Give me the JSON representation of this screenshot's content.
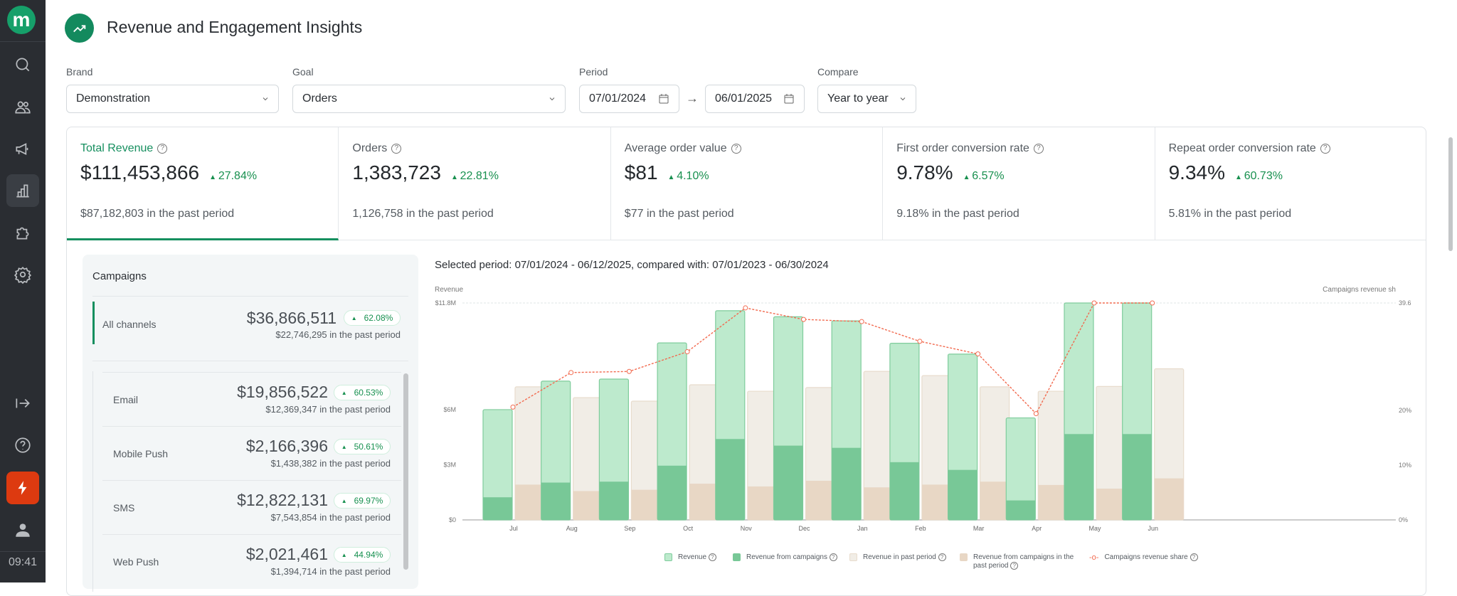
{
  "sidebar": {
    "logo": "m",
    "time": "09:41",
    "items": [
      "search-icon",
      "users-icon",
      "megaphone-icon",
      "bar-chart-icon",
      "puzzle-icon",
      "settings-icon"
    ],
    "bottom": [
      "expand-icon",
      "help-icon",
      "bolt-icon",
      "user-icon"
    ],
    "accent": "#dd3a10"
  },
  "header": {
    "title": "Revenue and Engagement Insights"
  },
  "filters": {
    "brand_label": "Brand",
    "brand": "Demonstration",
    "goal_label": "Goal",
    "goal": "Orders",
    "period_label": "Period",
    "start": "07/01/2024",
    "end": "06/01/2025",
    "compare_label": "Compare",
    "compare": "Year to year"
  },
  "kpis": [
    {
      "title": "Total Revenue",
      "value": "$111,453,866",
      "delta": "27.84%",
      "past": "$87,182,803 in the past period"
    },
    {
      "title": "Orders",
      "value": "1,383,723",
      "delta": "22.81%",
      "past": "1,126,758 in the past period"
    },
    {
      "title": "Average order value",
      "value": "$81",
      "delta": "4.10%",
      "past": "$77 in the past period"
    },
    {
      "title": "First order conversion rate",
      "value": "9.78%",
      "delta": "6.57%",
      "past": "9.18% in the past period"
    },
    {
      "title": "Repeat order conversion rate",
      "value": "9.34%",
      "delta": "60.73%",
      "past": "5.81% in the past period"
    }
  ],
  "campaigns": {
    "title": "Campaigns",
    "all": {
      "name": "All channels",
      "value": "$36,866,511",
      "delta": "62.08%",
      "past": "$22,746,295 in the past period"
    },
    "channels": [
      {
        "name": "Email",
        "value": "$19,856,522",
        "delta": "60.53%",
        "past": "$12,369,347 in the past period"
      },
      {
        "name": "Mobile Push",
        "value": "$2,166,396",
        "delta": "50.61%",
        "past": "$1,438,382 in the past period"
      },
      {
        "name": "SMS",
        "value": "$12,822,131",
        "delta": "69.97%",
        "past": "$7,543,854 in the past period"
      },
      {
        "name": "Web Push",
        "value": "$2,021,461",
        "delta": "44.94%",
        "past": "$1,394,714 in the past period"
      }
    ]
  },
  "chart_title": "Selected period: 07/01/2024 - 06/12/2025, compared with: 07/01/2023 - 06/30/2024",
  "chart_data": {
    "type": "bar",
    "ylabel": "Revenue",
    "y2label": "Campaigns revenue sh",
    "ylim": [
      0,
      11.8
    ],
    "y2lim": [
      0,
      39.6
    ],
    "yticks": [
      "$0",
      "$3M",
      "$6M",
      "$11.8M"
    ],
    "ytick_values": [
      0,
      3,
      6,
      11.8
    ],
    "y2ticks": [
      "0%",
      "10%",
      "20%",
      "39.6"
    ],
    "y2tick_values": [
      0,
      10,
      20,
      39.6
    ],
    "categories": [
      "Jul",
      "Aug",
      "Sep",
      "Oct",
      "Nov",
      "Dec",
      "Jan",
      "Feb",
      "Mar",
      "Apr",
      "May",
      "Jun"
    ],
    "series": [
      {
        "name": "Revenue",
        "values": [
          6.0,
          7.55,
          7.66,
          9.63,
          11.38,
          11.05,
          10.83,
          9.61,
          9.02,
          5.55,
          11.8,
          11.8
        ],
        "color": "#bdeacd"
      },
      {
        "name": "Revenue from campaigns",
        "values": [
          1.23,
          2.03,
          2.08,
          2.95,
          4.4,
          4.04,
          3.92,
          3.14,
          2.72,
          1.06,
          4.67,
          4.67
        ],
        "color": "#78c897"
      },
      {
        "name": "Revenue in past period",
        "values": [
          7.24,
          6.65,
          6.46,
          7.35,
          7.0,
          7.2,
          8.08,
          7.85,
          7.24,
          7.0,
          7.26,
          8.22
        ],
        "color": "#f1ede6"
      },
      {
        "name": "Revenue from campaigns in the past period",
        "values": [
          1.92,
          1.57,
          1.64,
          1.97,
          1.82,
          2.13,
          1.77,
          1.92,
          2.08,
          1.9,
          1.7,
          2.26
        ],
        "color": "#e8d7c5"
      },
      {
        "name": "Campaigns revenue share",
        "values": [
          20.6,
          26.9,
          27.1,
          30.7,
          38.7,
          36.6,
          36.2,
          32.6,
          30.3,
          19.4,
          39.6,
          39.6
        ],
        "color": "#f26a4f",
        "axis": "right"
      }
    ],
    "legend": "bottom"
  }
}
